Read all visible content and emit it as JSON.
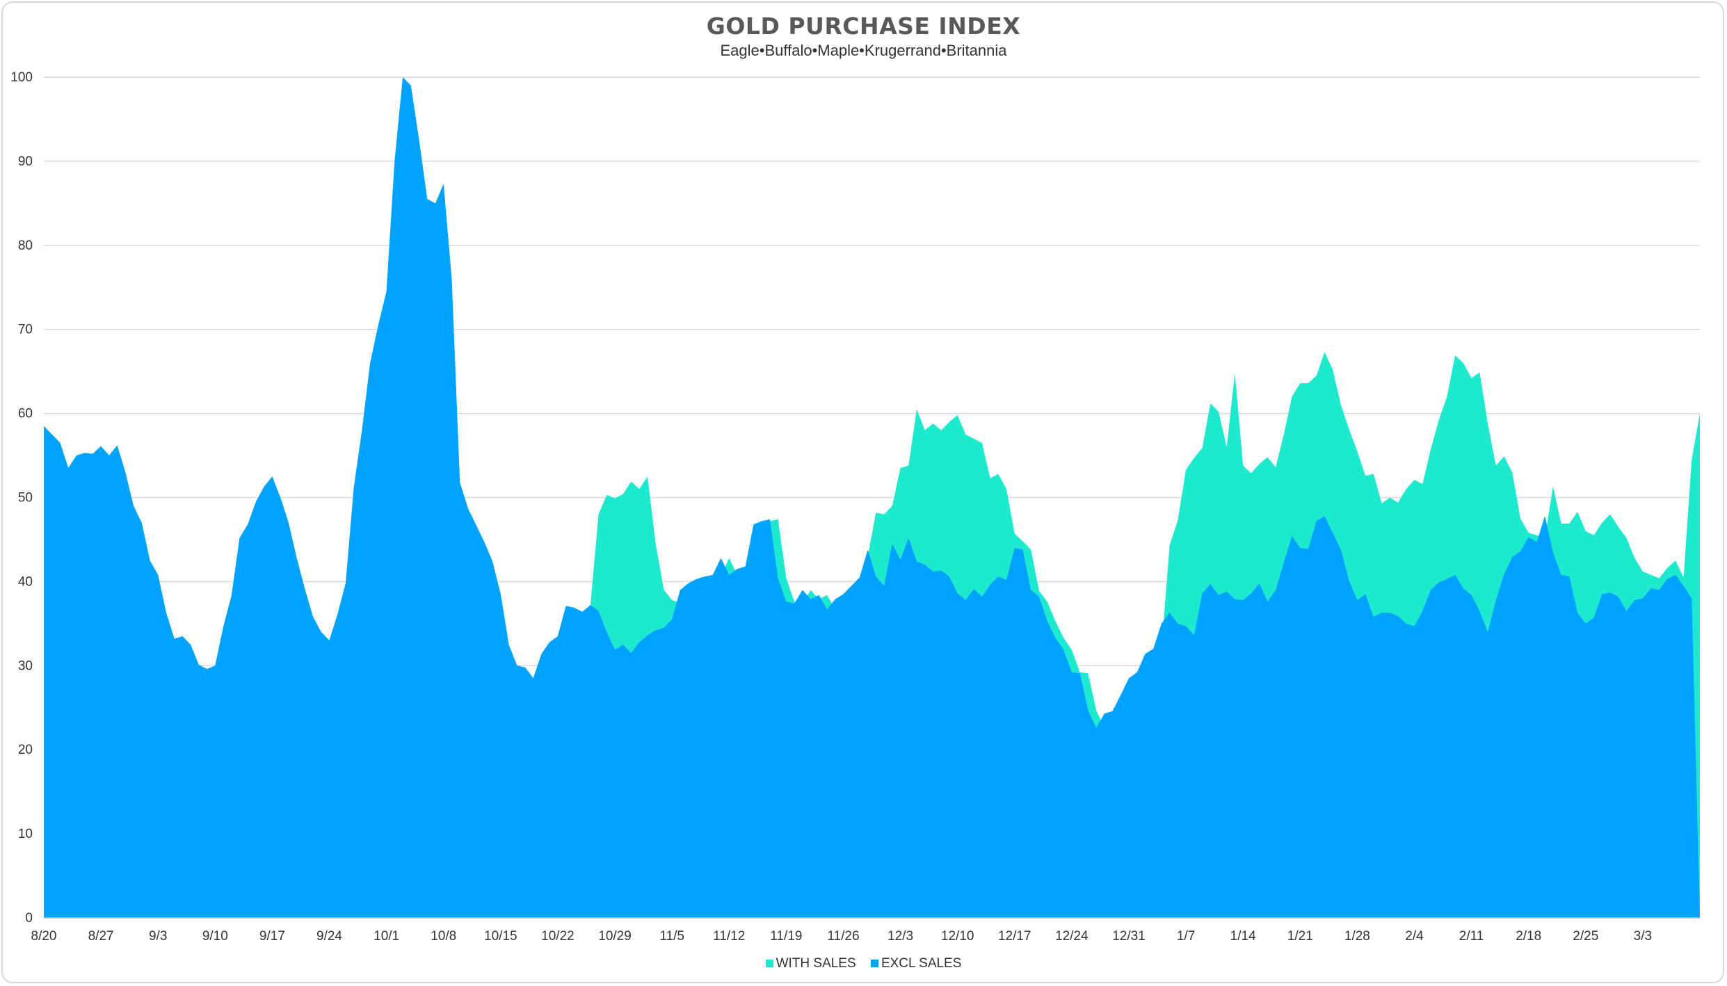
{
  "chart_data": {
    "type": "area",
    "title": "GOLD PURCHASE INDEX",
    "subtitle": "Eagle•Buffalo•Maple•Krugerrand•Britannia",
    "xlabel": "",
    "ylabel": "",
    "ylim": [
      0,
      100
    ],
    "yticks": [
      0,
      10,
      20,
      30,
      40,
      50,
      60,
      70,
      80,
      90,
      100
    ],
    "x_ticks": [
      "8/20",
      "8/27",
      "9/3",
      "9/10",
      "9/17",
      "9/24",
      "10/1",
      "10/8",
      "10/15",
      "10/22",
      "10/29",
      "11/5",
      "11/12",
      "11/19",
      "11/26",
      "12/3",
      "12/10",
      "12/17",
      "12/24",
      "12/31",
      "1/7",
      "1/14",
      "1/21",
      "1/28",
      "2/4",
      "2/11",
      "2/18",
      "2/25",
      "3/3"
    ],
    "x_start": "8/20",
    "x_interval_days": 1,
    "grid": true,
    "legend_position": "bottom",
    "colors": {
      "with_sales": "#1de9cf",
      "excl_sales": "#00a2ff"
    },
    "series": [
      {
        "name": "WITH SALES",
        "values": [
          58.5,
          57.5,
          56.5,
          53.5,
          55,
          55.3,
          55.2,
          56.1,
          55,
          56.2,
          53,
          49,
          47,
          42.5,
          40.8,
          36.3,
          33.2,
          33.5,
          32.5,
          30.1,
          29.6,
          30,
          34.6,
          38.3,
          45.2,
          46.8,
          49.5,
          51.3,
          52.5,
          50,
          47,
          42.8,
          39.1,
          35.8,
          34,
          33,
          36.1,
          39.8,
          51.2,
          58,
          66,
          70.5,
          74.5,
          90,
          100,
          99,
          92.5,
          85.5,
          85,
          87.3,
          76,
          51.8,
          48.7,
          46.7,
          44.7,
          42.4,
          38.5,
          32.5,
          30,
          29.8,
          28.5,
          31.4,
          32.8,
          33.5,
          37.1,
          36.9,
          36.4,
          37.2,
          48,
          50.3,
          49.9,
          50.4,
          51.9,
          51,
          52.5,
          44.5,
          39,
          37.8,
          37.5,
          38.8,
          39.5,
          40.1,
          40.4,
          40.6,
          42.8,
          40.8,
          41.5,
          41.8,
          46.8,
          47.2,
          47.4,
          40.4,
          37.6,
          37.4,
          39,
          37.9,
          38.4,
          36.7,
          37.9,
          38.5,
          40,
          43,
          48.2,
          48,
          49,
          53.5,
          53.8,
          60.5,
          58,
          58.8,
          58,
          59,
          59.8,
          57.5,
          57,
          56.5,
          52.3,
          52.8,
          51,
          45.7,
          44.8,
          43.8,
          38.9,
          37.6,
          35.3,
          33.3,
          31.9,
          29.2,
          29.1,
          24.7,
          22.6,
          24.3,
          24.6,
          26.5,
          28.5,
          29.2,
          31.4,
          32,
          44.3,
          47.3,
          53.3,
          54.7,
          55.9,
          61.2,
          60.2,
          56,
          64.8,
          53.8,
          52.9,
          54,
          54.8,
          53.6,
          57.5,
          62,
          63.6,
          63.6,
          64.5,
          67.3,
          65.2,
          61,
          58.1,
          55.5,
          52.6,
          52.8,
          49.3,
          50,
          49.4,
          51,
          52.1,
          51.6,
          55.7,
          59.2,
          62,
          66.9,
          66,
          64.2,
          64.9,
          58.8,
          53.8,
          54.9,
          53,
          47.5,
          45.8,
          45.5,
          45.2,
          51.3,
          46.9,
          46.9,
          48.3,
          46,
          45.5,
          47,
          48,
          46.5,
          45.2,
          42.8,
          41.2,
          40.8,
          40.4,
          41.6,
          42.5,
          40.5,
          54.5,
          60
        ]
      },
      {
        "name": "EXCL SALES",
        "values": [
          58.5,
          57.5,
          56.5,
          53.5,
          55,
          55.3,
          55.2,
          56.1,
          55,
          56.2,
          53,
          49,
          47,
          42.5,
          40.8,
          36.3,
          33.2,
          33.5,
          32.5,
          30.1,
          29.6,
          30,
          34.6,
          38.3,
          45.2,
          46.8,
          49.5,
          51.3,
          52.5,
          50,
          47,
          42.8,
          39.1,
          35.8,
          34,
          33,
          36.1,
          39.8,
          51.2,
          58,
          66,
          70.5,
          74.5,
          90,
          100,
          99,
          92.5,
          85.5,
          85,
          87.3,
          76,
          51.8,
          48.7,
          46.7,
          44.7,
          42.4,
          38.5,
          32.5,
          30,
          29.8,
          28.5,
          31.4,
          32.8,
          33.5,
          37.1,
          36.9,
          36.4,
          37.2,
          36.5,
          34,
          31.9,
          32.5,
          31.5,
          32.8,
          33.6,
          34.2,
          34.5,
          35.5,
          39,
          39.8,
          40.3,
          40.6,
          40.8,
          42.8,
          40.8,
          41.5,
          41.8,
          46.8,
          47.2,
          47.4,
          40.4,
          37.6,
          37.4,
          39,
          37.9,
          38.4,
          36.7,
          37.9,
          38.5,
          39.5,
          40.5,
          43.8,
          40.6,
          39.5,
          44.5,
          42.6,
          45.2,
          42.4,
          42,
          41.2,
          41.3,
          40.6,
          38.6,
          37.8,
          39.1,
          38.2,
          39.6,
          40.6,
          40.2,
          44,
          43.8,
          39,
          38.2,
          35.3,
          33.3,
          31.9,
          29.2,
          29.1,
          24.7,
          22.6,
          24.3,
          24.6,
          26.5,
          28.5,
          29.2,
          31.4,
          32,
          35,
          36.3,
          35,
          34.7,
          33.6,
          38.6,
          39.7,
          38.4,
          38.8,
          37.9,
          37.8,
          38.6,
          39.8,
          37.6,
          39,
          42.3,
          45.4,
          44,
          43.9,
          47.2,
          47.8,
          45.8,
          43.8,
          40.1,
          37.8,
          38.5,
          35.8,
          36.3,
          36.3,
          35.9,
          35,
          34.7,
          36.5,
          39,
          39.9,
          40.3,
          40.8,
          39.2,
          38.4,
          36.5,
          34,
          37.8,
          40.9,
          42.9,
          43.6,
          45.3,
          44.7,
          47.8,
          43.5,
          40.8,
          40.6,
          36.3,
          35,
          35.7,
          38.5,
          38.7,
          38.2,
          36.5,
          37.8,
          38,
          39.2,
          39,
          40.3,
          40.8,
          39.5,
          38
        ]
      }
    ]
  }
}
